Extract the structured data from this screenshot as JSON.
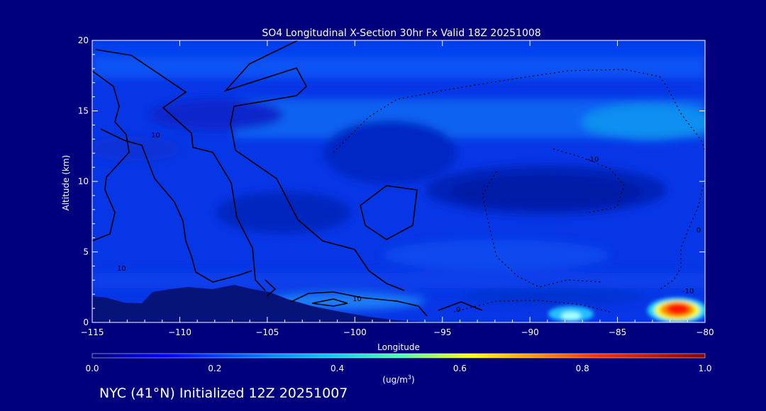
{
  "colors": {
    "background": "#00007f",
    "axis": "#ffffff",
    "contour": "#000000",
    "terrain": "#06147a"
  },
  "chart_data": {
    "type": "heatmap",
    "title": "SO4 Longitudinal X-Section 30hr  Fx Valid 18Z 20251008",
    "xlabel": "Longitude",
    "ylabel": "Altitude (km)",
    "xlim": [
      -115,
      -80
    ],
    "ylim": [
      0,
      20
    ],
    "x_ticks": [
      -115,
      -110,
      -105,
      -100,
      -95,
      -90,
      -85,
      -80
    ],
    "x_tick_labels": [
      "−115",
      "−110",
      "−105",
      "−100",
      "−95",
      "−90",
      "−85",
      "−80"
    ],
    "y_ticks": [
      0,
      5,
      10,
      15,
      20
    ],
    "y_tick_labels": [
      "0",
      "5",
      "10",
      "15",
      "20"
    ],
    "grid": false,
    "colorbar": {
      "range": [
        0.0,
        1.0
      ],
      "tick_labels": [
        "0.0",
        "0.2",
        "0.4",
        "0.6",
        "0.8",
        "1.0"
      ],
      "unit_label": "(ug/m",
      "unit_sup": "3",
      "unit_close": ")"
    },
    "contour_labels": [
      "10",
      "10",
      "10",
      "0",
      "-10",
      "0",
      "-10"
    ],
    "subtitle": "NYC (41°N) Initialized 12Z 20251007"
  }
}
